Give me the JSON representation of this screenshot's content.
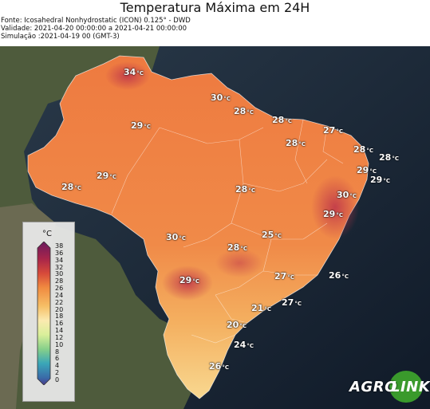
{
  "header": {
    "title": "Temperatura Máxima em 24H",
    "source": "Fonte: Icosahedral Nonhydrostatic (ICON) 0.125° - DWD",
    "validity": "Validade: 2021-04-20 00:00:00 a 2021-04-21 00:00:00",
    "simulation": "Simulação :2021-04-19 00 (GMT-3)"
  },
  "map": {
    "background_ocean": "#1c2633",
    "land_color_dark": "#4b5a3a",
    "unit_suffix": "°C",
    "labels": [
      {
        "value": "34"
      },
      {
        "value": "30"
      },
      {
        "value": "28"
      },
      {
        "value": "28"
      },
      {
        "value": "27"
      },
      {
        "value": "29"
      },
      {
        "value": "28"
      },
      {
        "value": "28"
      },
      {
        "value": "28"
      },
      {
        "value": "29"
      },
      {
        "value": "29"
      },
      {
        "value": "28"
      },
      {
        "value": "29"
      },
      {
        "value": "28"
      },
      {
        "value": "30"
      },
      {
        "value": "29"
      },
      {
        "value": "30"
      },
      {
        "value": "25"
      },
      {
        "value": "28"
      },
      {
        "value": "29"
      },
      {
        "value": "27"
      },
      {
        "value": "26"
      },
      {
        "value": "21"
      },
      {
        "value": "27"
      },
      {
        "value": "20"
      },
      {
        "value": "24"
      },
      {
        "value": "26"
      }
    ]
  },
  "legend": {
    "unit": "°C",
    "ticks": [
      "38",
      "36",
      "34",
      "32",
      "30",
      "28",
      "26",
      "24",
      "22",
      "20",
      "18",
      "16",
      "14",
      "12",
      "10",
      "8",
      "6",
      "4",
      "2",
      "0"
    ],
    "colors": {
      "top": "#6a1a5e",
      "hot": "#c73a3a",
      "warm": "#f08a40",
      "mild": "#f7d070",
      "cool": "#fbf7c0",
      "fresh": "#a8d98a",
      "cold": "#3aa6b8",
      "bottom": "#4b3a8a"
    }
  },
  "logo": {
    "left": "AGRO",
    "right": "LINK",
    "circle_color": "#3a9a2c"
  }
}
